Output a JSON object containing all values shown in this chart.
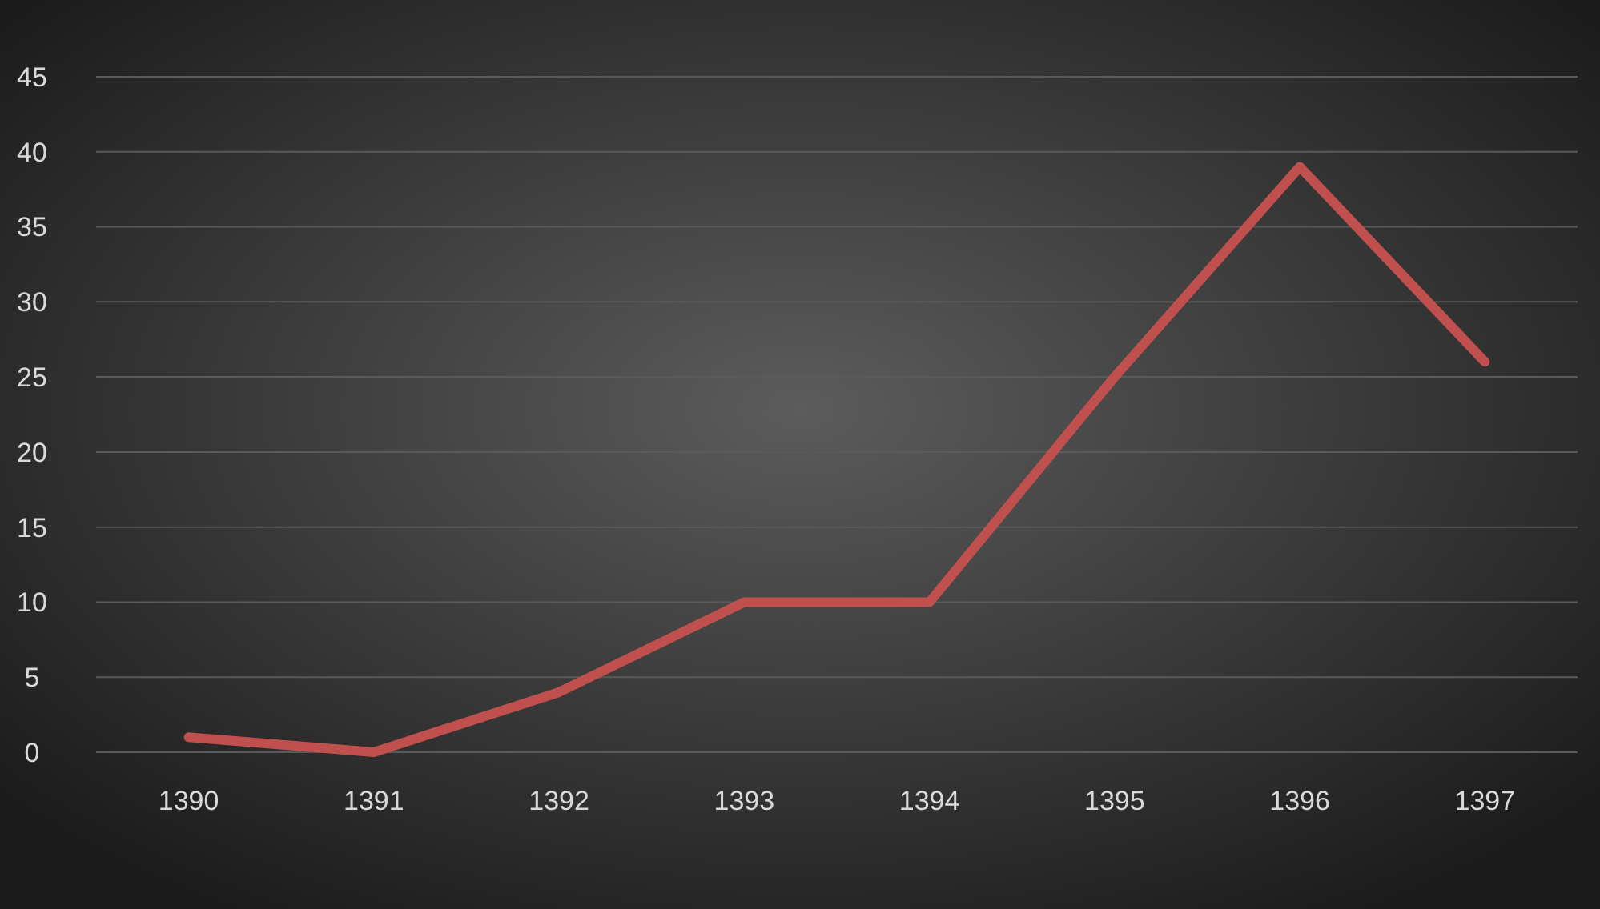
{
  "chart_data": {
    "type": "line",
    "categories": [
      "1390",
      "1391",
      "1392",
      "1393",
      "1394",
      "1395",
      "1396",
      "1397"
    ],
    "series": [
      {
        "color": "#c0504d",
        "values": [
          1,
          0,
          4,
          10,
          10,
          25,
          39,
          26
        ]
      }
    ],
    "ylim": [
      0,
      45
    ],
    "yticks": [
      0,
      5,
      10,
      15,
      20,
      25,
      30,
      35,
      40,
      45
    ],
    "grid": "y",
    "marker": "none",
    "line_style": "solid"
  }
}
